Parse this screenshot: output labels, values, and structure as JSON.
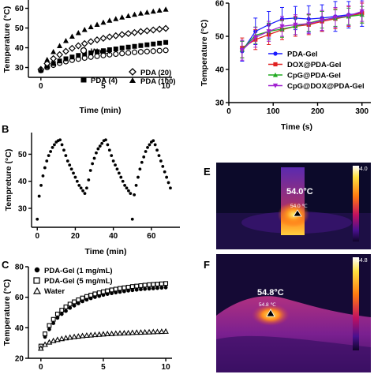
{
  "panels": {
    "b": "B",
    "c": "C",
    "e": "E",
    "f": "F"
  },
  "chart_data": [
    {
      "id": "A",
      "type": "scatter",
      "xlabel": "Time (min)",
      "ylabel": "Temperature (°C)",
      "xlim": [
        -1,
        10.5
      ],
      "ylim": [
        25,
        65
      ],
      "xticks": [
        0,
        5,
        10
      ],
      "yticks": [
        30,
        40,
        50,
        60
      ],
      "legend": [
        "Water",
        "PDA (4)",
        "PDA (20)",
        "PDA (100)"
      ],
      "series": [
        {
          "name": "Water",
          "marker": "circle-open",
          "x": [
            0,
            0.5,
            1,
            1.5,
            2,
            2.5,
            3,
            3.5,
            4,
            4.5,
            5,
            5.5,
            6,
            6.5,
            7,
            7.5,
            8,
            8.5,
            9,
            9.5,
            10
          ],
          "y": [
            28.5,
            30,
            31.2,
            32.2,
            33,
            33.7,
            34.3,
            34.8,
            35.3,
            35.7,
            36.1,
            36.5,
            36.8,
            37.1,
            37.4,
            37.7,
            37.9,
            38.1,
            38.3,
            38.5,
            38.7
          ]
        },
        {
          "name": "PDA (4)",
          "marker": "square-filled",
          "x": [
            0,
            0.5,
            1,
            1.5,
            2,
            2.5,
            3,
            3.5,
            4,
            4.5,
            5,
            5.5,
            6,
            6.5,
            7,
            7.5,
            8,
            8.5,
            9,
            9.5,
            10
          ],
          "y": [
            28.5,
            30.5,
            32,
            33.3,
            34.4,
            35.3,
            36.1,
            36.8,
            37.4,
            38,
            38.5,
            39,
            39.4,
            39.9,
            40.3,
            40.7,
            41.1,
            41.5,
            41.9,
            42.3,
            42.7
          ]
        },
        {
          "name": "PDA (20)",
          "marker": "diamond-open",
          "x": [
            0,
            0.5,
            1,
            1.5,
            2,
            2.5,
            3,
            3.5,
            4,
            4.5,
            5,
            5.5,
            6,
            6.5,
            7,
            7.5,
            8,
            8.5,
            9,
            9.5,
            10
          ],
          "y": [
            29,
            32,
            34.5,
            36.5,
            38.2,
            39.7,
            41,
            42.1,
            43.1,
            44,
            44.8,
            45.5,
            46.1,
            46.7,
            47.2,
            47.7,
            48.2,
            48.6,
            49,
            49.4,
            49.8
          ]
        },
        {
          "name": "PDA (100)",
          "marker": "triangle-filled",
          "x": [
            0,
            0.5,
            1,
            1.5,
            2,
            2.5,
            3,
            3.5,
            4,
            4.5,
            5,
            5.5,
            6,
            6.5,
            7,
            7.5,
            8,
            8.5,
            9,
            9.5,
            10
          ],
          "y": [
            29,
            34,
            38,
            41,
            43.6,
            45.8,
            47.6,
            49.2,
            50.6,
            51.8,
            52.9,
            53.9,
            54.7,
            55.5,
            56.2,
            56.9,
            57.5,
            58,
            58.5,
            59,
            59.5
          ]
        }
      ]
    },
    {
      "id": "right-line",
      "type": "line",
      "xlabel": "Time (s)",
      "ylabel": "Temperature (°C)",
      "xlim": [
        0,
        320
      ],
      "ylim": [
        30,
        60
      ],
      "xticks": [
        0,
        100,
        200,
        300
      ],
      "yticks": [
        30,
        40,
        50,
        60
      ],
      "legend": [
        "PDA-Gel",
        "DOX@PDA-Gel",
        "CpG@PDA-Gel",
        "CpG@DOX@PDA-Gel"
      ],
      "series": [
        {
          "name": "PDA-Gel",
          "color": "#1a1aff",
          "marker": "circle",
          "x": [
            30,
            60,
            90,
            120,
            150,
            180,
            210,
            240,
            270,
            300
          ],
          "y": [
            45.5,
            51.5,
            53.5,
            55.2,
            55.5,
            55.2,
            55.5,
            56,
            56.5,
            57
          ],
          "err": [
            3,
            4,
            4,
            3.5,
            3.5,
            4,
            4,
            4.5,
            4,
            4
          ]
        },
        {
          "name": "DOX@PDA-Gel",
          "color": "#e02020",
          "marker": "square",
          "x": [
            30,
            60,
            90,
            120,
            150,
            180,
            210,
            240,
            270,
            300
          ],
          "y": [
            46.5,
            49,
            50.5,
            52,
            53,
            53.5,
            54.5,
            55.3,
            56,
            57
          ],
          "err": [
            3,
            3,
            3,
            3,
            3,
            3,
            3,
            3,
            3,
            3
          ]
        },
        {
          "name": "CpG@PDA-Gel",
          "color": "#22aa22",
          "marker": "triangle",
          "x": [
            30,
            60,
            90,
            120,
            150,
            180,
            210,
            240,
            270,
            300
          ],
          "y": [
            46,
            50.3,
            51.5,
            52.2,
            53,
            54,
            55,
            55.5,
            56,
            56.5
          ],
          "err": [
            2.5,
            2.5,
            2.5,
            2.5,
            2.5,
            2.5,
            2.5,
            2.5,
            2.5,
            2.5
          ]
        },
        {
          "name": "CpG@DOX@PDA-Gel",
          "color": "#a020d0",
          "marker": "triangle-down",
          "x": [
            30,
            60,
            90,
            120,
            150,
            180,
            210,
            240,
            270,
            300
          ],
          "y": [
            45.8,
            49.7,
            51.5,
            53,
            53.5,
            53.8,
            54.8,
            55.7,
            56.2,
            57.5
          ],
          "err": [
            3,
            3,
            3,
            3,
            3,
            3,
            3,
            3,
            3,
            3
          ]
        }
      ]
    },
    {
      "id": "B",
      "type": "scatter",
      "xlabel": "Time (min)",
      "ylabel": "Tempreture (°C)",
      "xlim": [
        -3,
        75
      ],
      "ylim": [
        23,
        58
      ],
      "xticks": [
        0,
        20,
        40,
        60
      ],
      "yticks": [
        30,
        40,
        50
      ],
      "series": [
        {
          "name": "",
          "marker": "circle-filled",
          "x": [
            0,
            1,
            2,
            3,
            4,
            5,
            6,
            7,
            8,
            9,
            10,
            11,
            12,
            13,
            14,
            15,
            16,
            17,
            18,
            19,
            20,
            21,
            22,
            23,
            24,
            25,
            26,
            27,
            28,
            29,
            30,
            31,
            32,
            33,
            34,
            35,
            36,
            37,
            38,
            39,
            40,
            41,
            42,
            43,
            44,
            45,
            46,
            47,
            48,
            49,
            50,
            51,
            52,
            53,
            54,
            55,
            56,
            57,
            58,
            59,
            60,
            61,
            62,
            63,
            64,
            65,
            66,
            67,
            68,
            69,
            70
          ],
          "y": [
            26,
            34.5,
            38.5,
            42,
            45,
            47.5,
            49.5,
            51,
            52.5,
            53.5,
            54.5,
            55,
            55.3,
            53.5,
            51.5,
            49.5,
            47.5,
            46,
            44.5,
            43,
            41.5,
            40,
            38.5,
            37.5,
            36.5,
            35.5,
            37.5,
            40.5,
            44,
            46.5,
            48.5,
            50.5,
            52,
            53,
            54,
            55,
            55.3,
            53.5,
            51.5,
            49.5,
            47.5,
            46,
            44.5,
            43,
            41.5,
            40,
            38.5,
            37.5,
            36.5,
            35.5,
            26,
            35,
            38.5,
            41.5,
            44.5,
            47,
            49,
            51,
            52.5,
            53.5,
            54.5,
            55,
            53.5,
            51.5,
            49.5,
            47.5,
            45.5,
            43.5,
            41.5,
            39.5,
            37.5
          ]
        }
      ]
    },
    {
      "id": "C",
      "type": "scatter",
      "xlabel": "",
      "ylabel": "Temperature (°C)",
      "xlim": [
        -1,
        10.5
      ],
      "ylim": [
        20,
        80
      ],
      "xticks": [
        0,
        5,
        10
      ],
      "yticks": [
        20,
        40,
        60,
        80
      ],
      "legend": [
        "PDA-Gel (1 mg/mL)",
        "PDA-Gel (5 mg/mL)",
        "Water"
      ],
      "series": [
        {
          "name": "PDA-Gel (1 mg/mL)",
          "marker": "circle-filled",
          "x": [
            0,
            0.33,
            0.67,
            1,
            1.33,
            1.67,
            2,
            2.33,
            2.67,
            3,
            3.33,
            3.67,
            4,
            4.33,
            4.67,
            5,
            5.33,
            5.67,
            6,
            6.33,
            6.67,
            7,
            7.33,
            7.67,
            8,
            8.33,
            8.67,
            9,
            9.33,
            9.67,
            10
          ],
          "y": [
            27,
            34,
            39,
            43,
            46.5,
            49,
            51,
            53,
            54.5,
            56,
            57.3,
            58.4,
            59.3,
            60.1,
            60.8,
            61.5,
            62.1,
            62.6,
            63.1,
            63.5,
            63.9,
            64.3,
            64.6,
            64.9,
            65.2,
            65.4,
            65.6,
            65.8,
            66,
            66.2,
            66.4
          ]
        },
        {
          "name": "PDA-Gel (5 mg/mL)",
          "marker": "square-open",
          "x": [
            0,
            0.33,
            0.67,
            1,
            1.33,
            1.67,
            2,
            2.33,
            2.67,
            3,
            3.33,
            3.67,
            4,
            4.33,
            4.67,
            5,
            5.33,
            5.67,
            6,
            6.33,
            6.67,
            7,
            7.33,
            7.67,
            8,
            8.33,
            8.67,
            9,
            9.33,
            9.67,
            10
          ],
          "y": [
            28,
            36,
            41.5,
            45.5,
            49,
            51.5,
            53.7,
            55.5,
            57,
            58.3,
            59.5,
            60.5,
            61.4,
            62.2,
            62.9,
            63.6,
            64.2,
            64.8,
            65.3,
            65.8,
            66.2,
            66.6,
            67,
            67.3,
            67.6,
            67.9,
            68.2,
            68.4,
            68.6,
            68.8,
            69
          ]
        },
        {
          "name": "Water",
          "marker": "triangle-open",
          "x": [
            0,
            0.33,
            0.67,
            1,
            1.33,
            1.67,
            2,
            2.33,
            2.67,
            3,
            3.33,
            3.67,
            4,
            4.33,
            4.67,
            5,
            5.33,
            5.67,
            6,
            6.33,
            6.67,
            7,
            7.33,
            7.67,
            8,
            8.33,
            8.67,
            9,
            9.33,
            9.67,
            10
          ],
          "y": [
            26.5,
            29,
            30.5,
            31.5,
            32.2,
            32.8,
            33.3,
            33.7,
            34.1,
            34.4,
            34.7,
            35,
            35.2,
            35.4,
            35.6,
            35.8,
            36,
            36.1,
            36.3,
            36.4,
            36.5,
            36.6,
            36.8,
            36.9,
            37,
            37.1,
            37.2,
            37.3,
            37.4,
            37.5,
            37.6
          ]
        }
      ]
    }
  ],
  "thermo": {
    "e": {
      "reading": "54.0°C",
      "marker_label": "54.0 ℃",
      "scale_max": "54.0"
    },
    "f": {
      "reading": "54.8°C",
      "marker_label": "54.8 ℃",
      "scale_max": "54.8"
    }
  }
}
